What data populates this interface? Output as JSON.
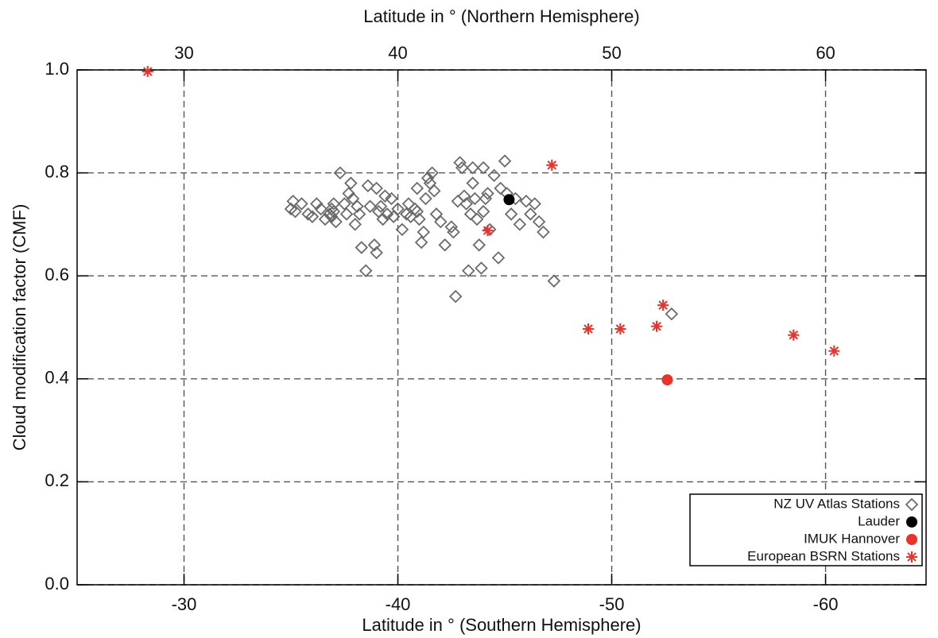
{
  "chart_data": {
    "type": "scatter",
    "xlabel": "Latitude in ° (Southern Hemisphere)",
    "x2label": "Latitude in ° (Northern Hemisphere)",
    "ylabel": "Cloud modification factor (CMF)",
    "xlim": [
      -25,
      -64.7
    ],
    "xticks": [
      -30,
      -40,
      -50,
      -60
    ],
    "x2lim": [
      25,
      64.7
    ],
    "x2ticks": [
      30,
      40,
      50,
      60
    ],
    "ylim": [
      0,
      1
    ],
    "yticks": [
      {
        "value": 0,
        "label": "0.0"
      },
      0.2,
      0.4,
      0.6,
      0.8,
      {
        "value": 1,
        "label": "1.0"
      }
    ],
    "grid": true,
    "legend": "lower right",
    "series": [
      {
        "name": "NZ UV Atlas Stations",
        "color": "#6b6b6b",
        "marker": "diamond",
        "x": [
          -35.0,
          -35.1,
          -35.2,
          -35.5,
          -35.8,
          -36.0,
          -36.2,
          -36.4,
          -36.6,
          -36.8,
          -36.9,
          -37.0,
          -37.0,
          -36.9,
          -37.1,
          -37.3,
          -37.5,
          -37.6,
          -37.7,
          -37.8,
          -37.9,
          -38.0,
          -38.1,
          -38.2,
          -38.3,
          -38.5,
          -38.6,
          -38.7,
          -38.9,
          -39.0,
          -39.0,
          -39.1,
          -39.2,
          -39.3,
          -39.4,
          -39.5,
          -39.7,
          -39.8,
          -40.0,
          -40.2,
          -40.4,
          -40.6,
          -40.8,
          -40.9,
          -41.0,
          -41.1,
          -41.2,
          -41.3,
          -41.4,
          -41.5,
          -41.6,
          -41.7,
          -41.8,
          -42.0,
          -42.2,
          -42.5,
          -42.6,
          -42.7,
          -42.8,
          -42.9,
          -43.0,
          -43.1,
          -43.3,
          -43.4,
          -43.5,
          -43.5,
          -43.6,
          -43.7,
          -43.8,
          -43.9,
          -44.0,
          -44.0,
          -44.2,
          -44.3,
          -44.5,
          -44.7,
          -44.8,
          -45.0,
          -45.1,
          -45.3,
          -45.5,
          -45.7,
          -46.0,
          -46.2,
          -46.4,
          -46.6,
          -46.8,
          -47.3,
          -52.8,
          -40.5,
          -40.9,
          -43.2,
          -44.1
        ],
        "values": [
          0.73,
          0.745,
          0.725,
          0.74,
          0.72,
          0.715,
          0.74,
          0.73,
          0.71,
          0.72,
          0.73,
          0.74,
          0.725,
          0.715,
          0.705,
          0.8,
          0.74,
          0.72,
          0.76,
          0.78,
          0.75,
          0.7,
          0.735,
          0.72,
          0.655,
          0.61,
          0.775,
          0.735,
          0.66,
          0.645,
          0.77,
          0.725,
          0.735,
          0.71,
          0.755,
          0.72,
          0.75,
          0.715,
          0.73,
          0.69,
          0.72,
          0.715,
          0.73,
          0.77,
          0.71,
          0.665,
          0.685,
          0.75,
          0.79,
          0.78,
          0.8,
          0.765,
          0.72,
          0.705,
          0.66,
          0.695,
          0.685,
          0.56,
          0.745,
          0.82,
          0.81,
          0.755,
          0.61,
          0.72,
          0.78,
          0.81,
          0.75,
          0.71,
          0.66,
          0.615,
          0.81,
          0.725,
          0.76,
          0.69,
          0.795,
          0.635,
          0.77,
          0.823,
          0.76,
          0.72,
          0.75,
          0.7,
          0.745,
          0.72,
          0.74,
          0.705,
          0.685,
          0.59,
          0.526,
          0.74,
          0.725,
          0.74,
          0.75
        ]
      },
      {
        "name": "Lauder",
        "color": "#000000",
        "marker": "circle",
        "x": [
          -45.2
        ],
        "values": [
          0.748
        ]
      },
      {
        "name": "IMUK Hannover",
        "color": "#e8322a",
        "marker": "circle",
        "axis": "x2",
        "x": [
          52.6
        ],
        "values": [
          0.398
        ]
      },
      {
        "name": "European BSRN Stations",
        "color": "#e8322a",
        "marker": "asterisk",
        "axis": "x2",
        "x": [
          28.3,
          47.2,
          44.2,
          48.9,
          50.4,
          52.1,
          52.4,
          58.5,
          60.4
        ],
        "values": [
          0.997,
          0.815,
          0.688,
          0.497,
          0.497,
          0.502,
          0.543,
          0.485,
          0.454
        ]
      }
    ]
  }
}
